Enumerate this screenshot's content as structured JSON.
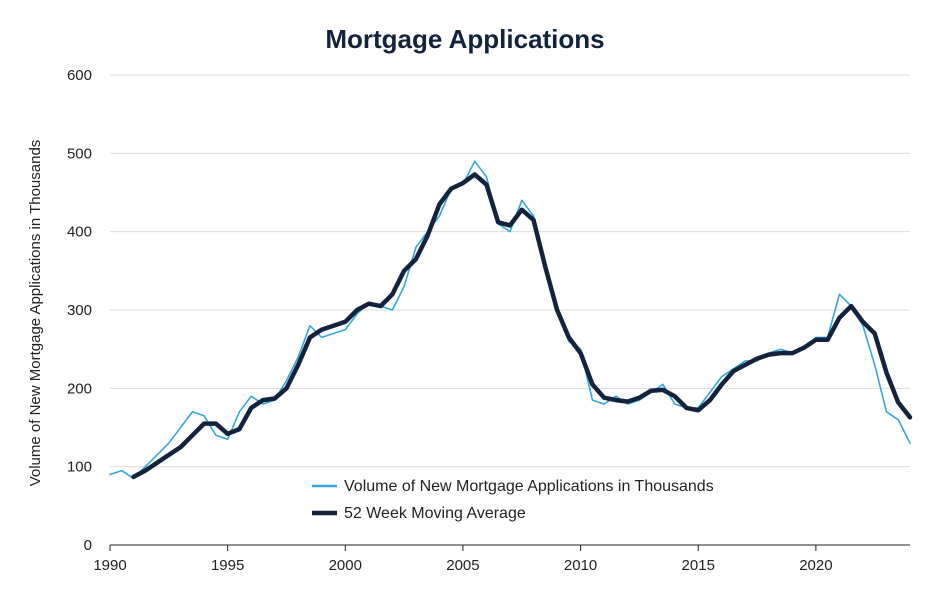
{
  "chart_data": {
    "type": "line",
    "title": "Mortgage Applications",
    "xlabel": "",
    "ylabel": "Volume of New Mortgage Applications in Thousands",
    "xlim": [
      1990,
      2024
    ],
    "ylim": [
      0,
      600
    ],
    "xticks": [
      1990,
      1995,
      2000,
      2005,
      2010,
      2015,
      2020
    ],
    "yticks": [
      0,
      100,
      200,
      300,
      400,
      500,
      600
    ],
    "grid": true,
    "legend_position": "bottom-center",
    "colors": {
      "weekly": "#33a6dd",
      "moving_average": "#14233d"
    },
    "series": [
      {
        "name": "Volume of New Mortgage Applications in Thousands",
        "x": [
          1990,
          1990.5,
          1991,
          1991.5,
          1992,
          1992.5,
          1993,
          1993.5,
          1994,
          1994.5,
          1995,
          1995.5,
          1996,
          1996.5,
          1997,
          1997.5,
          1998,
          1998.5,
          1999,
          1999.5,
          2000,
          2000.5,
          2001,
          2001.5,
          2002,
          2002.5,
          2003,
          2003.5,
          2004,
          2004.5,
          2005,
          2005.5,
          2006,
          2006.5,
          2007,
          2007.5,
          2008,
          2008.5,
          2009,
          2009.5,
          2010,
          2010.5,
          2011,
          2011.5,
          2012,
          2012.5,
          2013,
          2013.5,
          2014,
          2014.5,
          2015,
          2015.5,
          2016,
          2016.5,
          2017,
          2017.5,
          2018,
          2018.5,
          2019,
          2019.5,
          2020,
          2020.5,
          2021,
          2021.5,
          2022,
          2022.5,
          2023,
          2023.5,
          2024
        ],
        "values": [
          90,
          95,
          85,
          100,
          115,
          130,
          150,
          170,
          165,
          140,
          135,
          170,
          190,
          180,
          185,
          210,
          240,
          280,
          265,
          270,
          275,
          295,
          310,
          305,
          300,
          330,
          380,
          400,
          420,
          455,
          460,
          490,
          470,
          410,
          400,
          440,
          420,
          350,
          300,
          260,
          250,
          185,
          180,
          190,
          180,
          185,
          195,
          205,
          180,
          175,
          175,
          195,
          215,
          225,
          235,
          235,
          245,
          250,
          245,
          250,
          265,
          265,
          320,
          305,
          280,
          230,
          170,
          160,
          130
        ]
      },
      {
        "name": "52 Week Moving Average",
        "x": [
          1991,
          1991.5,
          1992,
          1992.5,
          1993,
          1993.5,
          1994,
          1994.5,
          1995,
          1995.5,
          1996,
          1996.5,
          1997,
          1997.5,
          1998,
          1998.5,
          1999,
          1999.5,
          2000,
          2000.5,
          2001,
          2001.5,
          2002,
          2002.5,
          2003,
          2003.5,
          2004,
          2004.5,
          2005,
          2005.5,
          2006,
          2006.5,
          2007,
          2007.5,
          2008,
          2008.5,
          2009,
          2009.5,
          2010,
          2010.5,
          2011,
          2011.5,
          2012,
          2012.5,
          2013,
          2013.5,
          2014,
          2014.5,
          2015,
          2015.5,
          2016,
          2016.5,
          2017,
          2017.5,
          2018,
          2018.5,
          2019,
          2019.5,
          2020,
          2020.5,
          2021,
          2021.5,
          2022,
          2022.5,
          2023,
          2023.5,
          2024
        ],
        "values": [
          87,
          95,
          105,
          115,
          125,
          140,
          155,
          155,
          142,
          148,
          175,
          185,
          187,
          200,
          230,
          265,
          275,
          280,
          285,
          300,
          308,
          305,
          320,
          350,
          365,
          395,
          435,
          455,
          462,
          473,
          460,
          412,
          408,
          428,
          415,
          355,
          300,
          265,
          245,
          205,
          188,
          185,
          183,
          188,
          197,
          198,
          190,
          175,
          172,
          185,
          205,
          222,
          230,
          238,
          243,
          245,
          245,
          252,
          262,
          262,
          290,
          305,
          285,
          270,
          220,
          182,
          163
        ]
      }
    ]
  }
}
